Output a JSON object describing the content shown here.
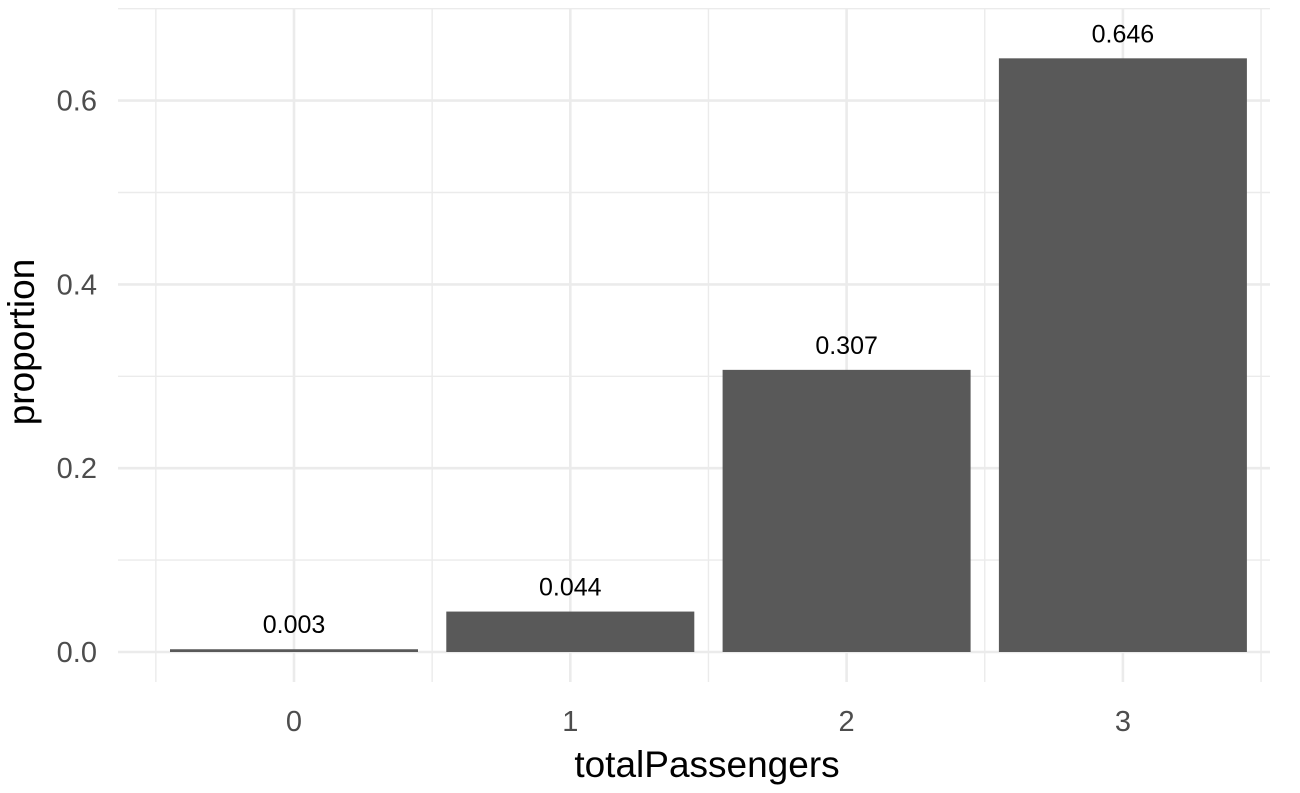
{
  "chart_data": {
    "type": "bar",
    "categories": [
      "0",
      "1",
      "2",
      "3"
    ],
    "values": [
      0.003,
      0.044,
      0.307,
      0.646
    ],
    "bar_labels": [
      "0.003",
      "0.044",
      "0.307",
      "0.646"
    ],
    "xlabel": "totalPassengers",
    "ylabel": "proportion",
    "ylim": [
      0,
      0.7
    ],
    "yticks": [
      "0.0",
      "0.2",
      "0.4",
      "0.6"
    ],
    "ytick_values": [
      0,
      0.2,
      0.4,
      0.6
    ],
    "grid": true,
    "legend": "none",
    "bar_color": "#595959",
    "grid_color": "#ebebeb"
  }
}
